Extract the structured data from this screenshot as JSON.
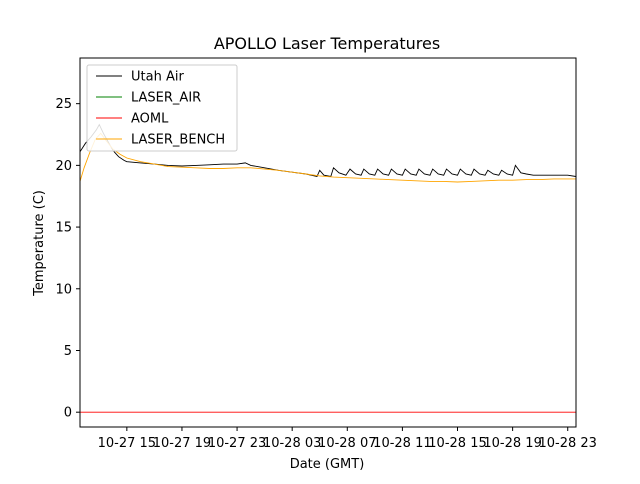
{
  "chart_data": {
    "type": "line",
    "title": "APOLLO Laser Temperatures",
    "xlabel": "Date (GMT)",
    "ylabel": "Temperature (C)",
    "x_unit": "hours since 10-27 00:00 GMT",
    "xlim": [
      11.6,
      47.6
    ],
    "ylim": [
      -1.2,
      28.7
    ],
    "y_ticks": [
      0,
      5,
      10,
      15,
      20,
      25
    ],
    "x_ticks": [
      {
        "x": 15,
        "label": "10-27 15"
      },
      {
        "x": 19,
        "label": "10-27 19"
      },
      {
        "x": 23,
        "label": "10-27 23"
      },
      {
        "x": 27,
        "label": "10-28 03"
      },
      {
        "x": 31,
        "label": "10-28 07"
      },
      {
        "x": 35,
        "label": "10-28 11"
      },
      {
        "x": 39,
        "label": "10-28 15"
      },
      {
        "x": 43,
        "label": "10-28 19"
      },
      {
        "x": 47,
        "label": "10-28 23"
      }
    ],
    "legend_position": "top-left",
    "grid": false,
    "series": [
      {
        "name": "Utah Air",
        "color": "#000000",
        "points": [
          [
            11.6,
            21.1
          ],
          [
            12.0,
            21.8
          ],
          [
            12.4,
            22.3
          ],
          [
            12.8,
            22.9
          ],
          [
            13.0,
            23.3
          ],
          [
            13.3,
            22.6
          ],
          [
            13.7,
            21.8
          ],
          [
            14.0,
            21.2
          ],
          [
            14.4,
            20.7
          ],
          [
            14.8,
            20.4
          ],
          [
            15.0,
            20.3
          ],
          [
            15.5,
            20.25
          ],
          [
            16.0,
            20.2
          ],
          [
            17.0,
            20.1
          ],
          [
            18.0,
            20.0
          ],
          [
            19.0,
            19.95
          ],
          [
            20.0,
            20.0
          ],
          [
            21.0,
            20.05
          ],
          [
            22.0,
            20.1
          ],
          [
            23.0,
            20.1
          ],
          [
            23.6,
            20.2
          ],
          [
            24.0,
            20.0
          ],
          [
            25.0,
            19.8
          ],
          [
            26.0,
            19.6
          ],
          [
            27.0,
            19.45
          ],
          [
            28.0,
            19.3
          ],
          [
            28.8,
            19.1
          ],
          [
            29.0,
            19.6
          ],
          [
            29.3,
            19.2
          ],
          [
            29.8,
            19.1
          ],
          [
            30.0,
            19.8
          ],
          [
            30.4,
            19.4
          ],
          [
            30.9,
            19.2
          ],
          [
            31.2,
            19.7
          ],
          [
            31.6,
            19.3
          ],
          [
            32.0,
            19.2
          ],
          [
            32.2,
            19.7
          ],
          [
            32.6,
            19.3
          ],
          [
            33.0,
            19.2
          ],
          [
            33.2,
            19.7
          ],
          [
            33.6,
            19.3
          ],
          [
            34.0,
            19.2
          ],
          [
            34.2,
            19.7
          ],
          [
            34.6,
            19.3
          ],
          [
            35.0,
            19.2
          ],
          [
            35.2,
            19.7
          ],
          [
            35.6,
            19.3
          ],
          [
            36.0,
            19.2
          ],
          [
            36.2,
            19.7
          ],
          [
            36.6,
            19.3
          ],
          [
            37.0,
            19.2
          ],
          [
            37.2,
            19.7
          ],
          [
            37.6,
            19.3
          ],
          [
            38.0,
            19.2
          ],
          [
            38.2,
            19.7
          ],
          [
            38.6,
            19.3
          ],
          [
            39.0,
            19.2
          ],
          [
            39.2,
            19.7
          ],
          [
            39.6,
            19.3
          ],
          [
            40.0,
            19.2
          ],
          [
            40.2,
            19.7
          ],
          [
            40.6,
            19.3
          ],
          [
            41.0,
            19.2
          ],
          [
            41.2,
            19.6
          ],
          [
            41.6,
            19.3
          ],
          [
            42.0,
            19.2
          ],
          [
            42.2,
            19.6
          ],
          [
            42.6,
            19.3
          ],
          [
            43.0,
            19.2
          ],
          [
            43.2,
            20.0
          ],
          [
            43.6,
            19.4
          ],
          [
            44.0,
            19.3
          ],
          [
            44.5,
            19.2
          ],
          [
            45.0,
            19.2
          ],
          [
            46.0,
            19.2
          ],
          [
            47.0,
            19.2
          ],
          [
            47.6,
            19.1
          ]
        ]
      },
      {
        "name": "LASER_AIR",
        "color": "#008000",
        "points": []
      },
      {
        "name": "AOML",
        "color": "#ff0000",
        "points": [
          [
            11.6,
            0.0
          ],
          [
            47.6,
            0.0
          ]
        ]
      },
      {
        "name": "LASER_BENCH",
        "color": "#ffa500",
        "points": [
          [
            11.6,
            18.7
          ],
          [
            11.9,
            19.8
          ],
          [
            12.3,
            21.0
          ],
          [
            12.7,
            22.1
          ],
          [
            13.1,
            22.6
          ],
          [
            13.5,
            22.0
          ],
          [
            14.0,
            21.3
          ],
          [
            14.5,
            20.9
          ],
          [
            15.0,
            20.6
          ],
          [
            16.0,
            20.3
          ],
          [
            17.0,
            20.1
          ],
          [
            18.0,
            19.9
          ],
          [
            19.0,
            19.85
          ],
          [
            20.0,
            19.8
          ],
          [
            21.0,
            19.75
          ],
          [
            22.0,
            19.75
          ],
          [
            23.0,
            19.8
          ],
          [
            24.0,
            19.8
          ],
          [
            25.0,
            19.7
          ],
          [
            26.0,
            19.6
          ],
          [
            27.0,
            19.45
          ],
          [
            28.0,
            19.3
          ],
          [
            29.0,
            19.15
          ],
          [
            30.0,
            19.05
          ],
          [
            31.0,
            19.0
          ],
          [
            32.0,
            18.95
          ],
          [
            33.0,
            18.9
          ],
          [
            34.0,
            18.85
          ],
          [
            35.0,
            18.8
          ],
          [
            36.0,
            18.75
          ],
          [
            37.0,
            18.7
          ],
          [
            38.0,
            18.7
          ],
          [
            39.0,
            18.65
          ],
          [
            40.0,
            18.7
          ],
          [
            41.0,
            18.75
          ],
          [
            42.0,
            18.8
          ],
          [
            43.0,
            18.8
          ],
          [
            44.0,
            18.85
          ],
          [
            45.0,
            18.85
          ],
          [
            46.0,
            18.9
          ],
          [
            47.0,
            18.9
          ],
          [
            47.6,
            18.9
          ]
        ]
      }
    ]
  }
}
